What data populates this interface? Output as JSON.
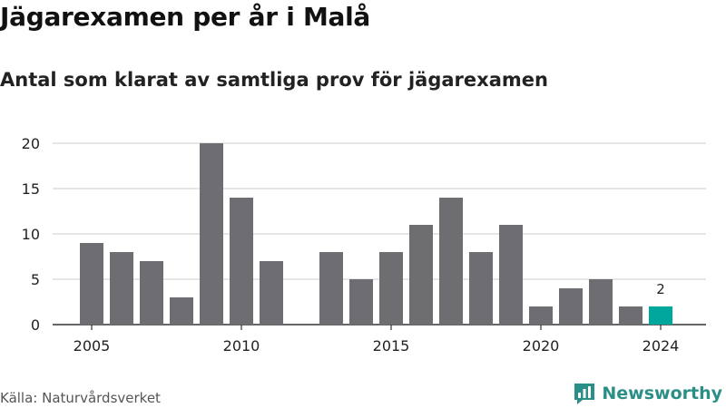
{
  "colors": {
    "bar": "#6e6d72",
    "highlight": "#00a79d",
    "grid": "#d6d6d6",
    "axis": "#333333",
    "brand": "#2a8f86"
  },
  "source": "Källa: Naturvårdsverket",
  "brand": {
    "name": "Newsworthy",
    "icon": "newsworthy-logo-icon"
  },
  "chart_data": {
    "type": "bar",
    "title": "Jägarexamen per år i Malå",
    "subtitle": "Antal som klarat av samtliga prov för jägarexamen",
    "categories": [
      2005,
      2006,
      2007,
      2008,
      2009,
      2010,
      2011,
      2012,
      2013,
      2014,
      2015,
      2016,
      2017,
      2018,
      2019,
      2020,
      2021,
      2022,
      2023,
      2024
    ],
    "values": [
      9,
      8,
      7,
      3,
      20,
      14,
      7,
      null,
      8,
      5,
      8,
      11,
      14,
      8,
      11,
      2,
      4,
      5,
      2,
      2
    ],
    "highlight_index": 19,
    "data_labels": [
      {
        "index": 19,
        "text": "2"
      }
    ],
    "x_ticks": [
      "2005",
      "2010",
      "2015",
      "2020",
      "2024"
    ],
    "y_ticks": [
      "0",
      "5",
      "10",
      "15",
      "20"
    ],
    "ylim": [
      0,
      20
    ],
    "grid": true,
    "legend": "none"
  }
}
